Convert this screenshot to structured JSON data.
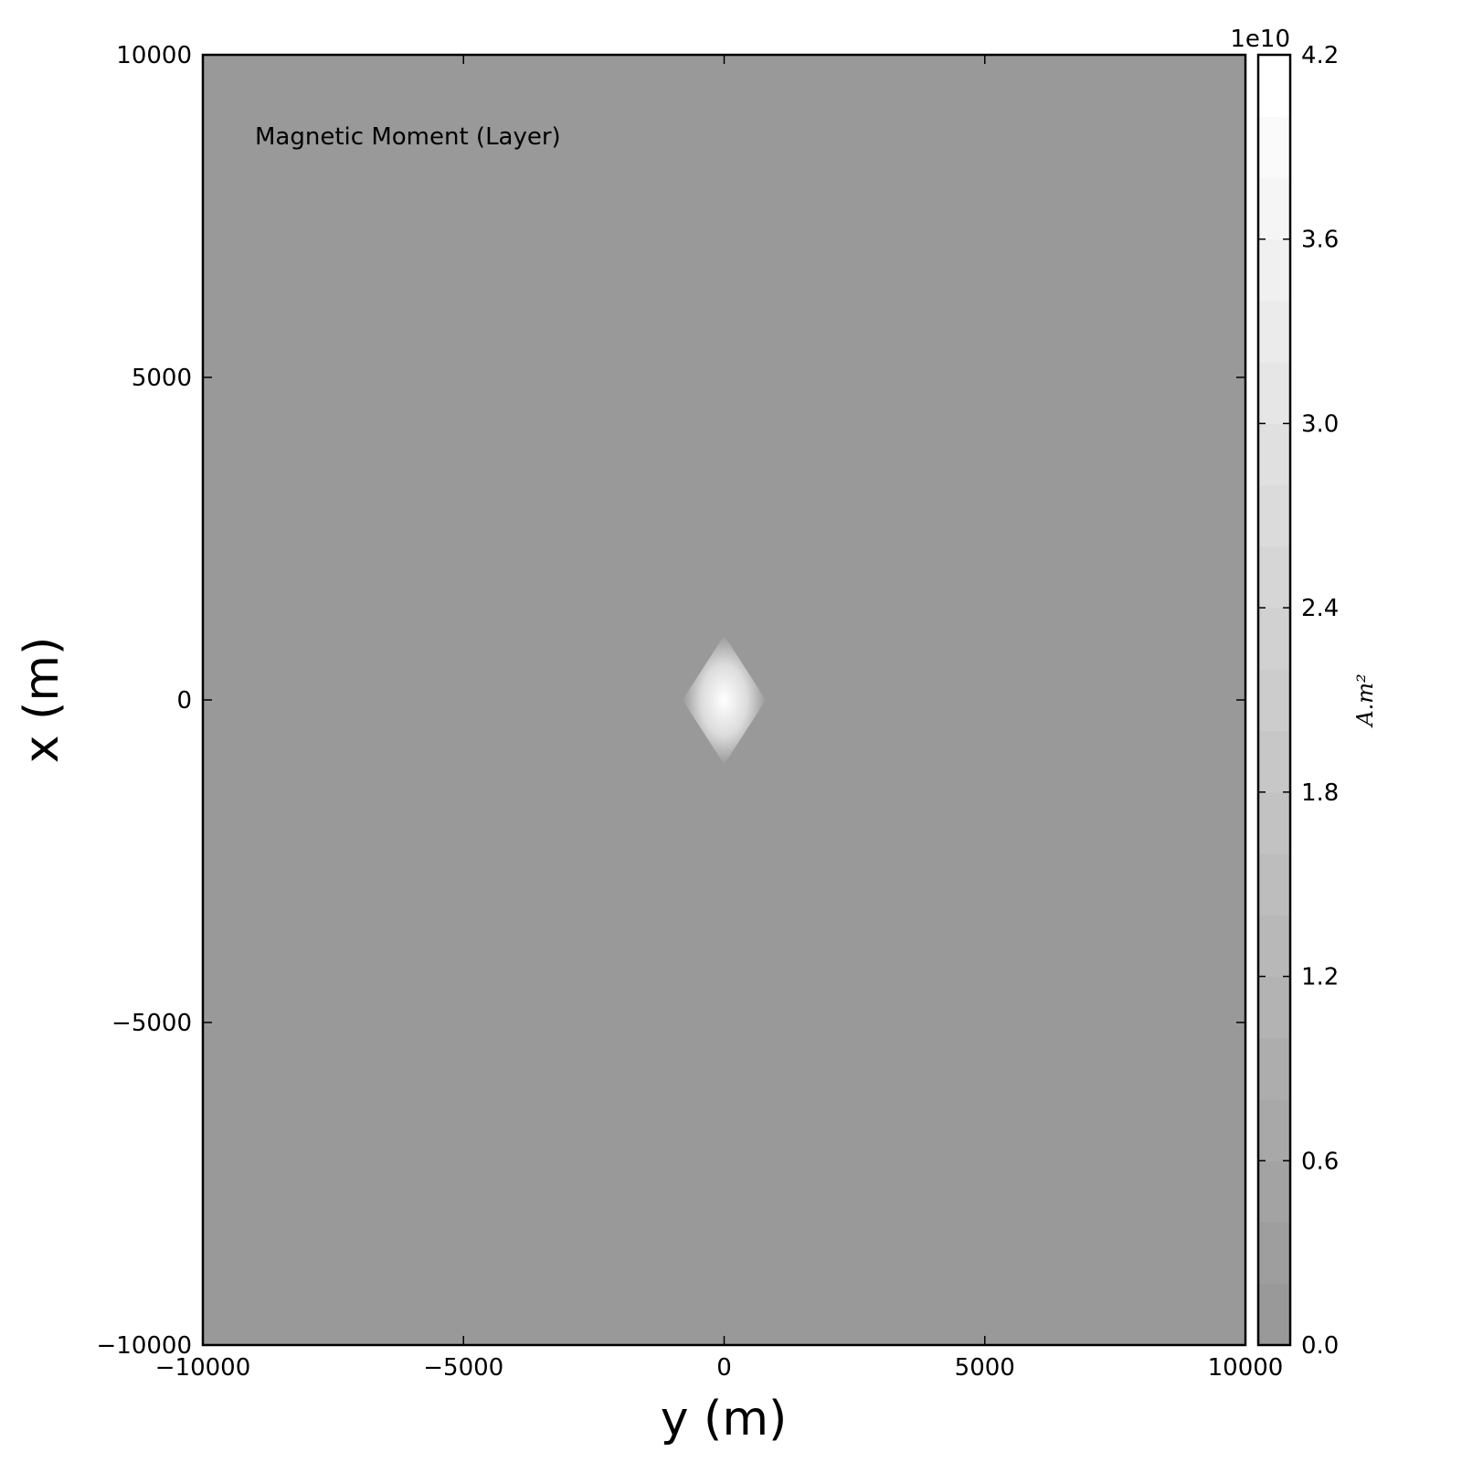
{
  "chart_data": {
    "type": "heatmap",
    "annotation": "Magnetic Moment (Layer)",
    "xlabel": "y (m)",
    "ylabel": "x (m)",
    "xlim": [
      -10000,
      10000
    ],
    "ylim": [
      -10000,
      10000
    ],
    "xticks": [
      -10000,
      -5000,
      0,
      5000,
      10000
    ],
    "xtick_labels": [
      "−10000",
      "−5000",
      "0",
      "5000",
      "10000"
    ],
    "yticks": [
      -10000,
      -5000,
      0,
      5000,
      10000
    ],
    "ytick_labels": [
      "−10000",
      "−5000",
      "0",
      "5000",
      "10000"
    ],
    "grid": false,
    "colormap": "gray",
    "background_color": "#999999",
    "anomaly": {
      "shape": "diamond",
      "center": [
        0,
        0
      ],
      "half_width_y": 800,
      "half_height_x": 1000,
      "peak_value": 42000000000.0
    },
    "colorbar": {
      "min": 0.0,
      "max": 4.2,
      "ticks": [
        0.0,
        0.6,
        1.2,
        1.8,
        2.4,
        3.0,
        3.6,
        4.2
      ],
      "tick_labels": [
        "0.0",
        "0.6",
        "1.2",
        "1.8",
        "2.4",
        "3.0",
        "3.6",
        "4.2"
      ],
      "levels": 21,
      "offset_label": "1e10",
      "unit_label": "A.m²",
      "color_low": "#999999",
      "color_high": "#ffffff"
    }
  }
}
